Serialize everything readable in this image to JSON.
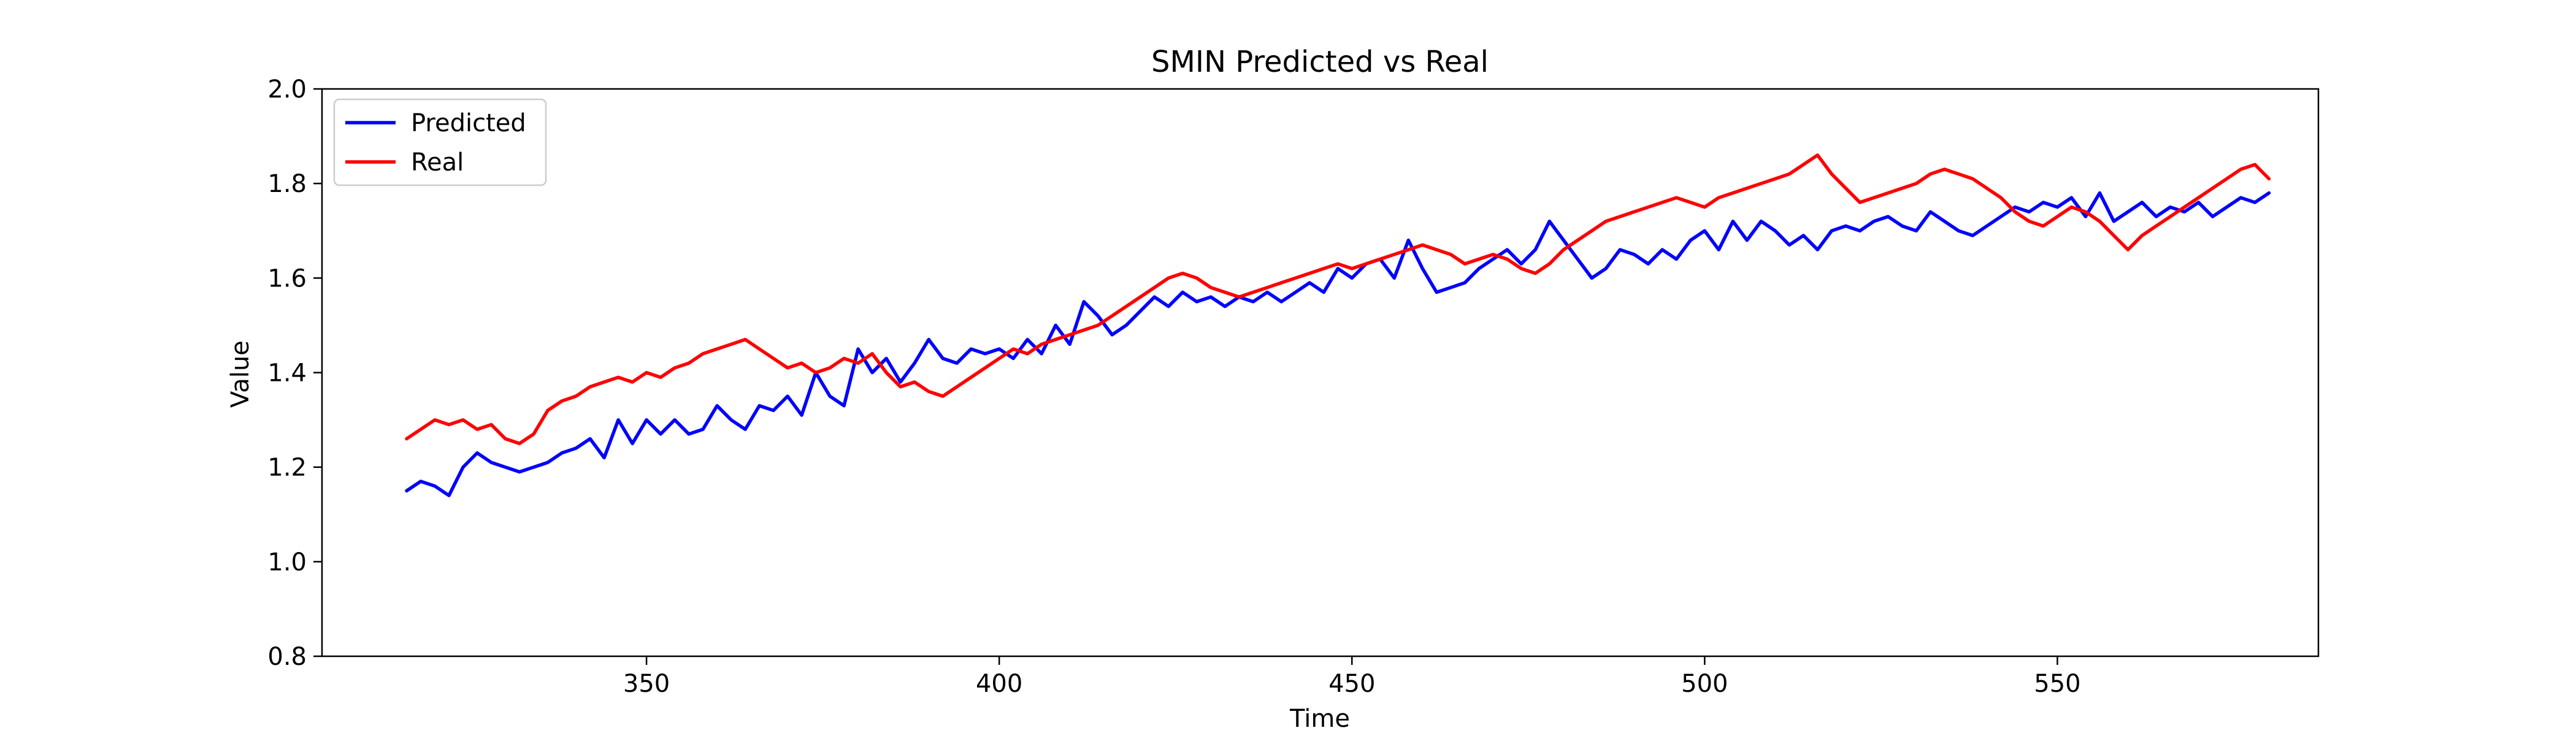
{
  "chart_data": {
    "type": "line",
    "title": "SMIN Predicted vs Real",
    "xlabel": "Time",
    "ylabel": "Value",
    "xlim": [
      304,
      587
    ],
    "ylim": [
      0.8,
      2.0
    ],
    "xticks": [
      350,
      400,
      450,
      500,
      550
    ],
    "yticks": [
      0.8,
      1.0,
      1.2,
      1.4,
      1.6,
      1.8,
      2.0
    ],
    "grid": false,
    "legend": "top-left",
    "x": [
      316,
      318,
      320,
      322,
      324,
      326,
      328,
      330,
      332,
      334,
      336,
      338,
      340,
      342,
      344,
      346,
      348,
      350,
      352,
      354,
      356,
      358,
      360,
      362,
      364,
      366,
      368,
      370,
      372,
      374,
      376,
      378,
      380,
      382,
      384,
      386,
      388,
      390,
      392,
      394,
      396,
      398,
      400,
      402,
      404,
      406,
      408,
      410,
      412,
      414,
      416,
      418,
      420,
      422,
      424,
      426,
      428,
      430,
      432,
      434,
      436,
      438,
      440,
      442,
      444,
      446,
      448,
      450,
      452,
      454,
      456,
      458,
      460,
      462,
      464,
      466,
      468,
      470,
      472,
      474,
      476,
      478,
      480,
      482,
      484,
      486,
      488,
      490,
      492,
      494,
      496,
      498,
      500,
      502,
      504,
      506,
      508,
      510,
      512,
      514,
      516,
      518,
      520,
      522,
      524,
      526,
      528,
      530,
      532,
      534,
      536,
      538,
      540,
      542,
      544,
      546,
      548,
      550,
      552,
      554,
      556,
      558,
      560,
      562,
      564,
      566,
      568,
      570,
      572,
      574,
      576,
      578,
      580
    ],
    "series": [
      {
        "name": "Predicted",
        "color": "#0000ff",
        "values": [
          1.15,
          1.17,
          1.16,
          1.14,
          1.2,
          1.23,
          1.21,
          1.2,
          1.19,
          1.2,
          1.21,
          1.23,
          1.24,
          1.26,
          1.22,
          1.3,
          1.25,
          1.3,
          1.27,
          1.3,
          1.27,
          1.28,
          1.33,
          1.3,
          1.28,
          1.33,
          1.32,
          1.35,
          1.31,
          1.4,
          1.35,
          1.33,
          1.45,
          1.4,
          1.43,
          1.38,
          1.42,
          1.47,
          1.43,
          1.42,
          1.45,
          1.44,
          1.45,
          1.43,
          1.47,
          1.44,
          1.5,
          1.46,
          1.55,
          1.52,
          1.48,
          1.5,
          1.53,
          1.56,
          1.54,
          1.57,
          1.55,
          1.56,
          1.54,
          1.56,
          1.55,
          1.57,
          1.55,
          1.57,
          1.59,
          1.57,
          1.62,
          1.6,
          1.63,
          1.64,
          1.6,
          1.68,
          1.62,
          1.57,
          1.58,
          1.59,
          1.62,
          1.64,
          1.66,
          1.63,
          1.66,
          1.72,
          1.68,
          1.64,
          1.6,
          1.62,
          1.66,
          1.65,
          1.63,
          1.66,
          1.64,
          1.68,
          1.7,
          1.66,
          1.72,
          1.68,
          1.72,
          1.7,
          1.67,
          1.69,
          1.66,
          1.7,
          1.71,
          1.7,
          1.72,
          1.73,
          1.71,
          1.7,
          1.74,
          1.72,
          1.7,
          1.69,
          1.71,
          1.73,
          1.75,
          1.74,
          1.76,
          1.75,
          1.77,
          1.73,
          1.78,
          1.72,
          1.74,
          1.76,
          1.73,
          1.75,
          1.74,
          1.76,
          1.73,
          1.75,
          1.77,
          1.76,
          1.78
        ]
      },
      {
        "name": "Real",
        "color": "#ff0000",
        "values": [
          1.26,
          1.28,
          1.3,
          1.29,
          1.3,
          1.28,
          1.29,
          1.26,
          1.25,
          1.27,
          1.32,
          1.34,
          1.35,
          1.37,
          1.38,
          1.39,
          1.38,
          1.4,
          1.39,
          1.41,
          1.42,
          1.44,
          1.45,
          1.46,
          1.47,
          1.45,
          1.43,
          1.41,
          1.42,
          1.4,
          1.41,
          1.43,
          1.42,
          1.44,
          1.4,
          1.37,
          1.38,
          1.36,
          1.35,
          1.37,
          1.39,
          1.41,
          1.43,
          1.45,
          1.44,
          1.46,
          1.47,
          1.48,
          1.49,
          1.5,
          1.52,
          1.54,
          1.56,
          1.58,
          1.6,
          1.61,
          1.6,
          1.58,
          1.57,
          1.56,
          1.57,
          1.58,
          1.59,
          1.6,
          1.61,
          1.62,
          1.63,
          1.62,
          1.63,
          1.64,
          1.65,
          1.66,
          1.67,
          1.66,
          1.65,
          1.63,
          1.64,
          1.65,
          1.64,
          1.62,
          1.61,
          1.63,
          1.66,
          1.68,
          1.7,
          1.72,
          1.73,
          1.74,
          1.75,
          1.76,
          1.77,
          1.76,
          1.75,
          1.77,
          1.78,
          1.79,
          1.8,
          1.81,
          1.82,
          1.84,
          1.86,
          1.82,
          1.79,
          1.76,
          1.77,
          1.78,
          1.79,
          1.8,
          1.82,
          1.83,
          1.82,
          1.81,
          1.79,
          1.77,
          1.74,
          1.72,
          1.71,
          1.73,
          1.75,
          1.74,
          1.72,
          1.69,
          1.66,
          1.69,
          1.71,
          1.73,
          1.75,
          1.77,
          1.79,
          1.81,
          1.83,
          1.84,
          1.81
        ]
      }
    ]
  }
}
